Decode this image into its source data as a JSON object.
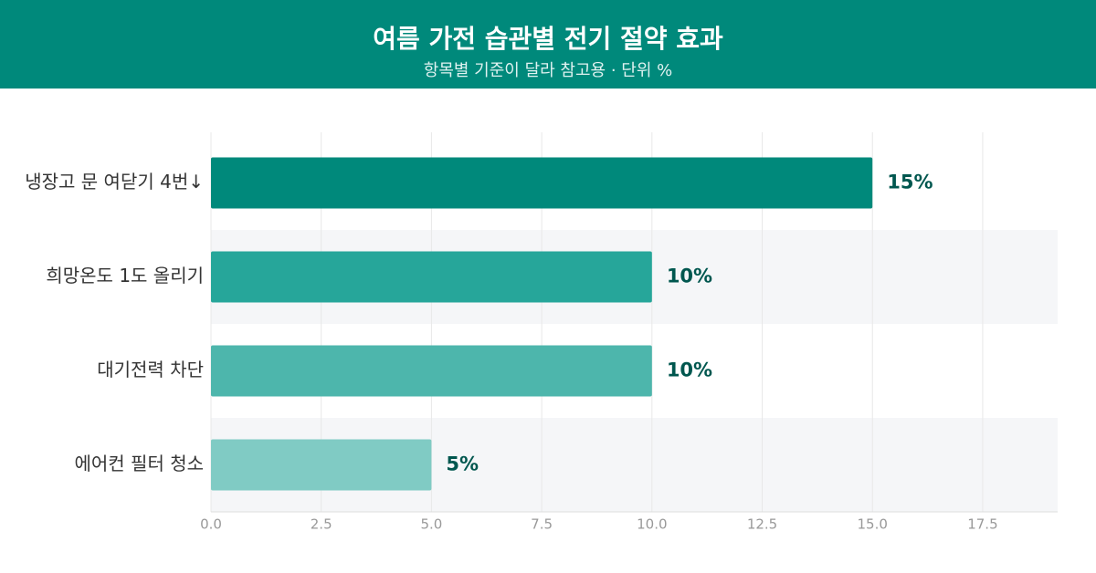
{
  "chart_data": {
    "type": "barh",
    "title": "여름 가전 습관별 전기 절약 효과",
    "subtitle": "항목별 기준이 달라 참고용 · 단위 %",
    "categories": [
      "냉장고 문 여닫기 4번↓",
      "희망온도 1도 올리기",
      "대기전력 차단",
      "에어컨 필터 청소"
    ],
    "values": [
      15,
      10,
      10,
      5
    ],
    "value_labels": [
      "15%",
      "10%",
      "10%",
      "5%"
    ],
    "colors": [
      "#00897b",
      "#26a69a",
      "#4db6ac",
      "#80cbc4"
    ],
    "xlim": [
      0,
      19.2
    ],
    "xticks": [
      {
        "value": 0,
        "label": "0.0"
      },
      2.5,
      {
        "value": 5,
        "label": "5.0"
      },
      7.5,
      {
        "value": 10,
        "label": "10.0"
      },
      12.5,
      {
        "value": 15,
        "label": "15.0"
      },
      17.5
    ],
    "grid": true
  }
}
